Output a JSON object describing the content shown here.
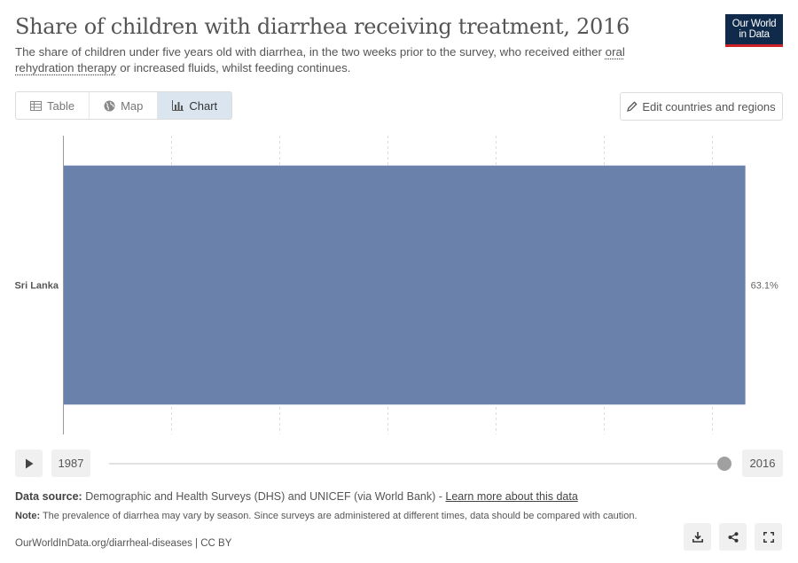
{
  "header": {
    "title": "Share of children with diarrhea receiving treatment, 2016",
    "subtitle_pre": "The share of children under five years old with diarrhea, in the two weeks prior to the survey, who received either ",
    "subtitle_link": "oral rehydration therapy",
    "subtitle_post": " or increased fluids, whilst feeding continues."
  },
  "logo": {
    "line1": "Our World",
    "line2": "in Data"
  },
  "tabs": [
    {
      "label": "Table",
      "icon": "table-icon"
    },
    {
      "label": "Map",
      "icon": "globe-icon"
    },
    {
      "label": "Chart",
      "icon": "bar-chart-icon",
      "active": true
    }
  ],
  "edit_button": {
    "label": "Edit countries and regions",
    "icon": "pencil-icon"
  },
  "chart_data": {
    "type": "bar",
    "orientation": "horizontal",
    "categories": [
      "Sri Lanka"
    ],
    "values": [
      63.1
    ],
    "value_labels": [
      "63.1%"
    ],
    "xlim": [
      0,
      66
    ],
    "x_gridlines": [
      0,
      10,
      20,
      30,
      40,
      50,
      60
    ],
    "grid": true,
    "bar_color": "#6a81ab"
  },
  "timeline": {
    "start_year": "1987",
    "end_year": "2016"
  },
  "footer": {
    "source_label": "Data source:",
    "source_text": " Demographic and Health Surveys (DHS) and UNICEF (via World Bank) - ",
    "source_link": "Learn more about this data",
    "note_label": "Note:",
    "note_text": " The prevalence of diarrhea may vary by season. Since surveys are administered at different times, data should be compared with caution.",
    "credit": "OurWorldInData.org/diarrheal-diseases | CC BY"
  }
}
